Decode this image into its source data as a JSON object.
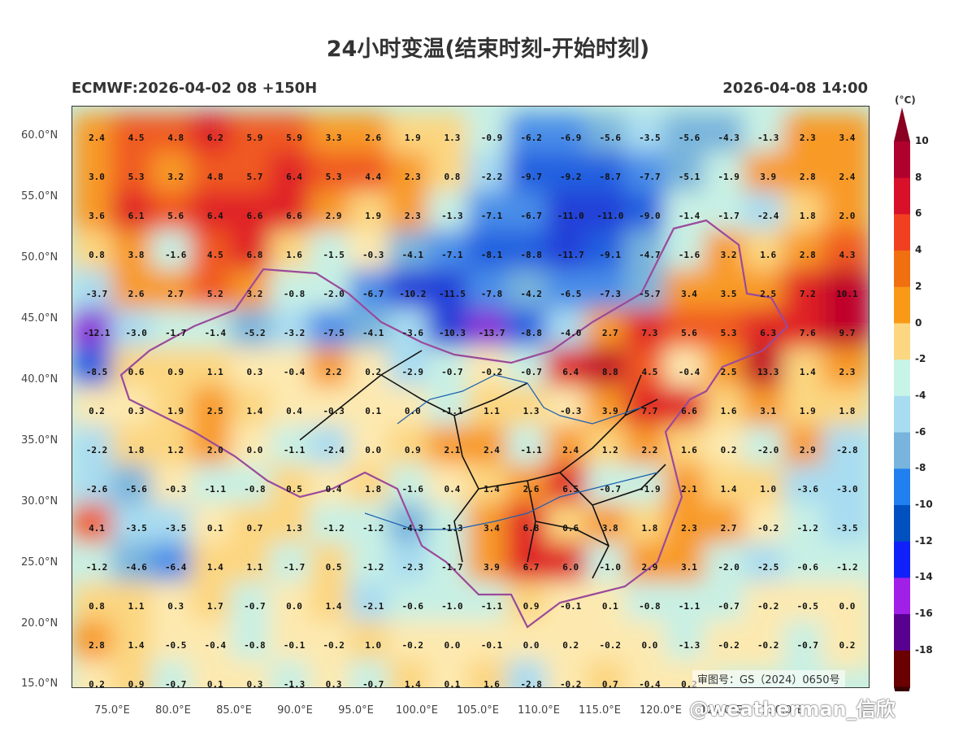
{
  "title": "24小时变温(结束时刻-开始时刻)",
  "model_run": "ECMWF:2026-04-02 08 +150H",
  "valid_time": "2026-04-08 14:00",
  "unit": "(°C)",
  "approval": "审图号：GS（2024）0650号",
  "watermark": "@weatherman_信欣",
  "lat_labels": [
    "60.0°N",
    "55.0°N",
    "50.0°N",
    "45.0°N",
    "40.0°N",
    "35.0°N",
    "30.0°N",
    "25.0°N",
    "20.0°N",
    "15.0°N"
  ],
  "lon_labels": [
    "75.0°E",
    "80.0°E",
    "85.0°E",
    "90.0°E",
    "95.0°E",
    "100.0°E",
    "105.0°E",
    "110.0°E",
    "115.0°E",
    "120.0°E",
    "125.0°E",
    "130.0°E"
  ],
  "colorbar": {
    "labels": [
      "10",
      "8",
      "6",
      "4",
      "2",
      "0",
      "-2",
      "-4",
      "-6",
      "-8",
      "-10",
      "-12",
      "-14",
      "-16",
      "-18"
    ],
    "colors": [
      "#b0002e",
      "#d8102a",
      "#f04020",
      "#f07010",
      "#f89a18",
      "#fcd680",
      "#c8f4e8",
      "#a8dcf0",
      "#78b4dc",
      "#2080f0",
      "#0050c0",
      "#1020f8",
      "#a020e8",
      "#580090",
      "#6a0000"
    ]
  },
  "grid_values": [
    [
      "2.4",
      "4.5",
      "4.8",
      "6.2",
      "5.9",
      "5.9",
      "3.3",
      "2.6",
      "1.9",
      "1.3",
      "-0.9",
      "-6.2",
      "-6.9",
      "-5.6",
      "-3.5",
      "-5.6",
      "-4.3",
      "-1.3",
      "2.3",
      "3.4"
    ],
    [
      "3.0",
      "5.3",
      "3.2",
      "4.8",
      "5.7",
      "6.4",
      "5.3",
      "4.4",
      "2.3",
      "0.8",
      "-2.2",
      "-9.7",
      "-9.2",
      "-8.7",
      "-7.7",
      "-5.1",
      "-1.9",
      "3.9",
      "2.8",
      "2.4"
    ],
    [
      "3.6",
      "6.1",
      "5.6",
      "6.4",
      "6.6",
      "6.6",
      "2.9",
      "1.9",
      "2.3",
      "-1.3",
      "-7.1",
      "-6.7",
      "-11.0",
      "-11.0",
      "-9.0",
      "-1.4",
      "-1.7",
      "-2.4",
      "1.8",
      "2.0"
    ],
    [
      "0.8",
      "3.8",
      "-1.6",
      "4.5",
      "6.8",
      "1.6",
      "-1.5",
      "-0.3",
      "-4.1",
      "-7.1",
      "-8.1",
      "-8.8",
      "-11.7",
      "-9.1",
      "-4.7",
      "-1.6",
      "3.2",
      "1.6",
      "2.8",
      "4.3"
    ],
    [
      "-3.7",
      "2.6",
      "2.7",
      "5.2",
      "3.2",
      "-0.8",
      "-2.0",
      "-6.7",
      "-10.2",
      "-11.5",
      "-7.8",
      "-4.2",
      "-6.5",
      "-7.3",
      "-5.7",
      "3.4",
      "3.5",
      "2.5",
      "7.2",
      "10.1"
    ],
    [
      "-12.1",
      "-3.0",
      "-1.7",
      "-1.4",
      "-5.2",
      "-3.2",
      "-7.5",
      "-4.1",
      "-3.6",
      "-10.3",
      "-13.7",
      "-8.8",
      "-4.0",
      "2.7",
      "7.3",
      "5.6",
      "5.3",
      "6.3",
      "7.6",
      "9.7"
    ],
    [
      "-8.5",
      "0.6",
      "0.9",
      "1.1",
      "0.3",
      "-0.4",
      "2.2",
      "0.2",
      "-2.9",
      "-0.7",
      "-0.2",
      "-0.7",
      "6.4",
      "8.8",
      "4.5",
      "-0.4",
      "2.5",
      "13.3",
      "1.4",
      "2.3"
    ],
    [
      "0.2",
      "0.3",
      "1.9",
      "2.5",
      "1.4",
      "0.4",
      "-0.3",
      "0.1",
      "0.0",
      "-1.1",
      "1.1",
      "1.3",
      "-0.3",
      "3.9",
      "7.7",
      "6.6",
      "1.6",
      "3.1",
      "1.9",
      "1.8"
    ],
    [
      "-2.2",
      "1.8",
      "1.2",
      "2.0",
      "0.0",
      "-1.1",
      "-2.4",
      "0.0",
      "0.9",
      "2.1",
      "2.4",
      "-1.1",
      "2.4",
      "1.2",
      "2.2",
      "1.6",
      "0.2",
      "-2.0",
      "2.9",
      "-2.8"
    ],
    [
      "-2.6",
      "-5.6",
      "-0.3",
      "-1.1",
      "-0.8",
      "0.5",
      "0.4",
      "1.8",
      "-1.6",
      "0.4",
      "1.4",
      "2.6",
      "6.5",
      "-0.7",
      "-1.9",
      "2.1",
      "1.4",
      "1.0",
      "-3.6",
      "-3.0"
    ],
    [
      "4.1",
      "-3.5",
      "-3.5",
      "0.1",
      "0.7",
      "1.3",
      "-1.2",
      "-1.2",
      "-4.3",
      "-1.3",
      "3.4",
      "6.8",
      "0.6",
      "3.8",
      "1.8",
      "2.3",
      "2.7",
      "-0.2",
      "-1.2",
      "-3.5"
    ],
    [
      "-1.2",
      "-4.6",
      "-6.4",
      "1.4",
      "1.1",
      "-1.7",
      "0.5",
      "-1.2",
      "-2.3",
      "-1.7",
      "3.9",
      "6.7",
      "6.0",
      "-1.0",
      "2.9",
      "3.1",
      "-2.0",
      "-2.5",
      "-0.6",
      "-1.2"
    ],
    [
      "0.8",
      "1.1",
      "0.3",
      "1.7",
      "-0.7",
      "0.0",
      "1.4",
      "-2.1",
      "-0.6",
      "-1.0",
      "-1.1",
      "0.9",
      "-0.1",
      "0.1",
      "-0.8",
      "-1.1",
      "-0.7",
      "-0.2",
      "-0.5",
      "0.0"
    ],
    [
      "2.8",
      "1.4",
      "-0.5",
      "-0.4",
      "-0.8",
      "-0.1",
      "-0.2",
      "1.0",
      "-0.2",
      "0.0",
      "-0.1",
      "0.0",
      "0.2",
      "-0.2",
      "0.0",
      "-1.3",
      "-0.2",
      "-0.2",
      "-0.7",
      "0.2"
    ],
    [
      "0.2",
      "0.9",
      "-0.7",
      "0.1",
      "0.3",
      "-1.3",
      "0.3",
      "-0.7",
      "1.4",
      "0.1",
      "1.6",
      "-2.8",
      "-0.2",
      "0.7",
      "-0.4",
      "0.2",
      "",
      "",
      "",
      ""
    ]
  ]
}
